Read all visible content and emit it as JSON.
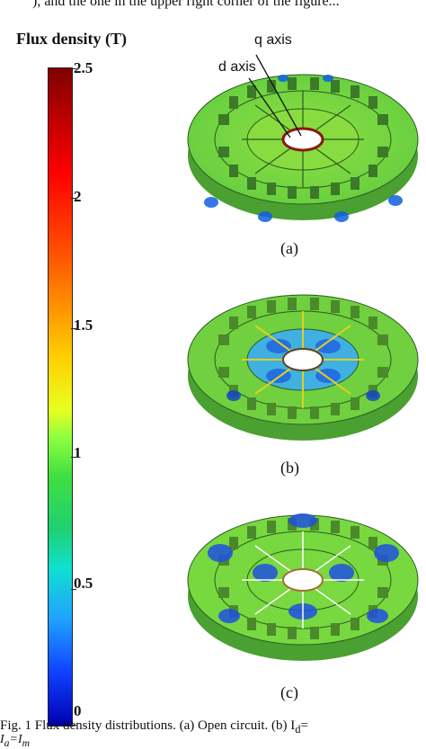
{
  "top_fragment": "), and the one in the upper right corner of the figure...",
  "colorbar": {
    "title": "Flux density (T)",
    "ticks": [
      "2.5",
      "2",
      "1.5",
      "1",
      "0.5",
      "0"
    ],
    "colors": [
      "#7f0000",
      "#ff0000",
      "#ffd000",
      "#40e040",
      "#10e0d0",
      "#1040ff",
      "#0000b0"
    ]
  },
  "figure": {
    "q_axis_label": "q axis",
    "d_axis_label": "d axis",
    "subfigures": [
      {
        "label": "(a)"
      },
      {
        "label": "(b)"
      },
      {
        "label": "(c)"
      }
    ]
  },
  "caption": {
    "line1": "Fig. 1  Flux density distributions. (a) Open circuit. (b) I",
    "line1_sub": "d",
    "line1_end": "=",
    "line2": "I",
    "line2_sub1": "a",
    "line2_mid": "=I",
    "line2_sub2": "m"
  }
}
